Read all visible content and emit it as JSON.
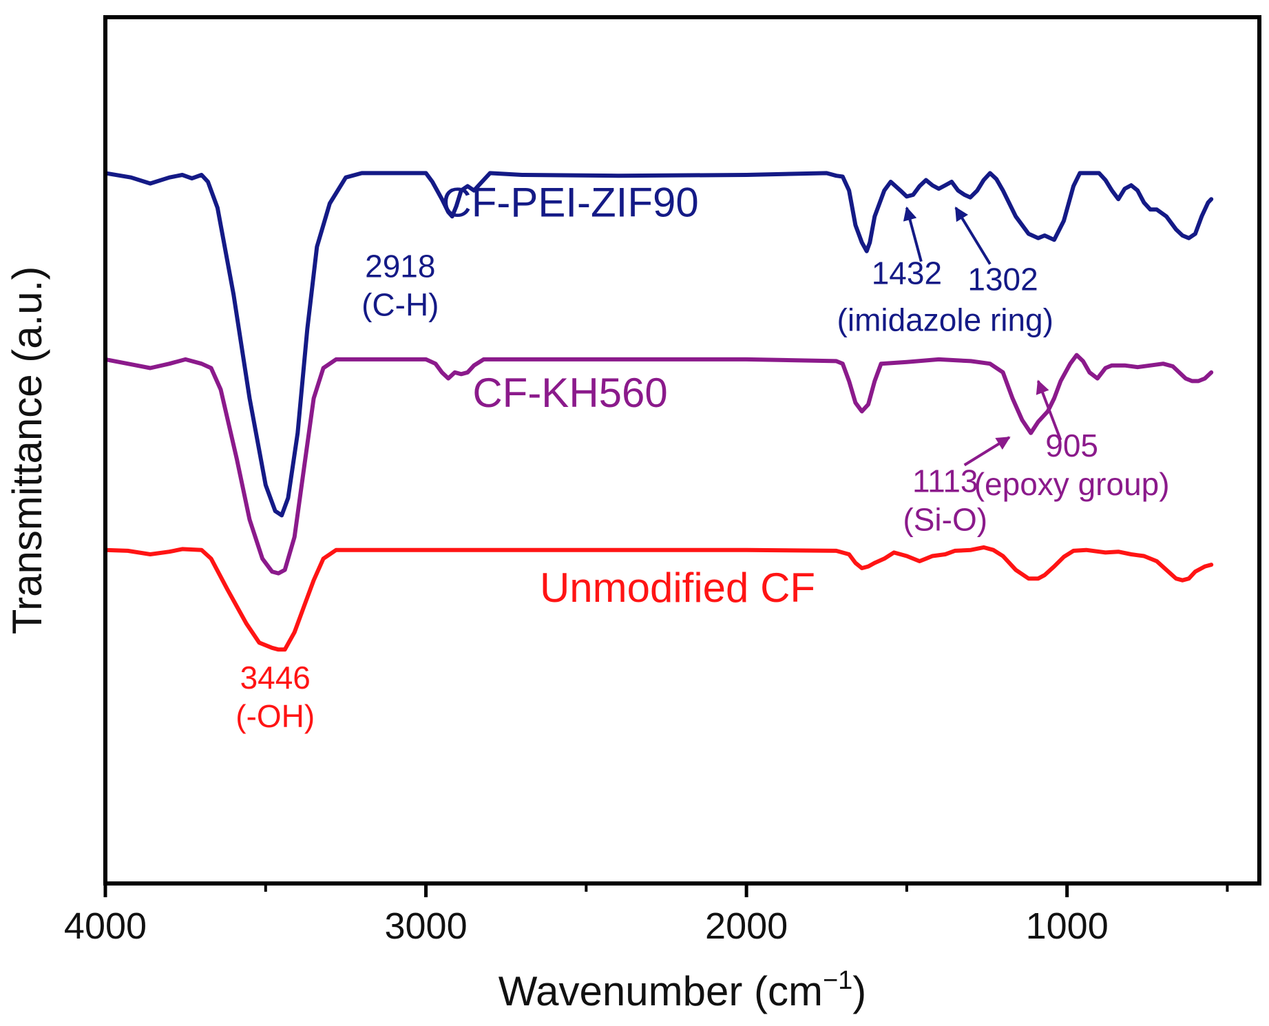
{
  "chart_data": {
    "type": "line",
    "xlabel": "Wavenumber (cm",
    "xlabel_sup": "−1",
    "xlabel_close": ")",
    "ylabel": "Transmittance (a.u.)",
    "xlim": [
      4000,
      400
    ],
    "x_ticks": [
      4000,
      3000,
      2000,
      1000
    ],
    "x_tick_labels": [
      "4000",
      "3000",
      "2000",
      "1000"
    ],
    "ylim": [
      0,
      1
    ],
    "grid": false,
    "series": [
      {
        "name": "CF-PEI-ZIF90",
        "color": "#141a86",
        "baseline": 0.82,
        "points": [
          [
            4000,
            0.82
          ],
          [
            3920,
            0.815
          ],
          [
            3860,
            0.808
          ],
          [
            3800,
            0.815
          ],
          [
            3760,
            0.818
          ],
          [
            3730,
            0.814
          ],
          [
            3700,
            0.818
          ],
          [
            3680,
            0.81
          ],
          [
            3650,
            0.78
          ],
          [
            3600,
            0.68
          ],
          [
            3550,
            0.56
          ],
          [
            3500,
            0.46
          ],
          [
            3470,
            0.43
          ],
          [
            3450,
            0.425
          ],
          [
            3430,
            0.445
          ],
          [
            3400,
            0.52
          ],
          [
            3370,
            0.64
          ],
          [
            3340,
            0.735
          ],
          [
            3300,
            0.785
          ],
          [
            3250,
            0.815
          ],
          [
            3200,
            0.82
          ],
          [
            3000,
            0.82
          ],
          [
            2980,
            0.81
          ],
          [
            2950,
            0.79
          ],
          [
            2930,
            0.775
          ],
          [
            2918,
            0.77
          ],
          [
            2905,
            0.782
          ],
          [
            2890,
            0.8
          ],
          [
            2870,
            0.805
          ],
          [
            2850,
            0.8
          ],
          [
            2830,
            0.808
          ],
          [
            2800,
            0.82
          ],
          [
            2700,
            0.818
          ],
          [
            2400,
            0.817
          ],
          [
            2000,
            0.818
          ],
          [
            1750,
            0.82
          ],
          [
            1720,
            0.817
          ],
          [
            1700,
            0.816
          ],
          [
            1680,
            0.8
          ],
          [
            1660,
            0.76
          ],
          [
            1640,
            0.74
          ],
          [
            1625,
            0.73
          ],
          [
            1615,
            0.74
          ],
          [
            1600,
            0.77
          ],
          [
            1570,
            0.8
          ],
          [
            1550,
            0.81
          ],
          [
            1520,
            0.8
          ],
          [
            1500,
            0.793
          ],
          [
            1480,
            0.795
          ],
          [
            1460,
            0.805
          ],
          [
            1440,
            0.812
          ],
          [
            1420,
            0.806
          ],
          [
            1400,
            0.802
          ],
          [
            1380,
            0.806
          ],
          [
            1360,
            0.81
          ],
          [
            1340,
            0.8
          ],
          [
            1320,
            0.795
          ],
          [
            1302,
            0.792
          ],
          [
            1280,
            0.8
          ],
          [
            1260,
            0.812
          ],
          [
            1240,
            0.82
          ],
          [
            1220,
            0.813
          ],
          [
            1200,
            0.8
          ],
          [
            1160,
            0.77
          ],
          [
            1120,
            0.75
          ],
          [
            1090,
            0.745
          ],
          [
            1070,
            0.748
          ],
          [
            1040,
            0.743
          ],
          [
            1010,
            0.765
          ],
          [
            980,
            0.805
          ],
          [
            960,
            0.82
          ],
          [
            900,
            0.82
          ],
          [
            880,
            0.812
          ],
          [
            860,
            0.8
          ],
          [
            840,
            0.79
          ],
          [
            820,
            0.802
          ],
          [
            800,
            0.806
          ],
          [
            780,
            0.8
          ],
          [
            760,
            0.786
          ],
          [
            740,
            0.778
          ],
          [
            720,
            0.778
          ],
          [
            690,
            0.77
          ],
          [
            660,
            0.755
          ],
          [
            640,
            0.748
          ],
          [
            620,
            0.745
          ],
          [
            600,
            0.75
          ],
          [
            580,
            0.77
          ],
          [
            560,
            0.786
          ],
          [
            550,
            0.79
          ]
        ]
      },
      {
        "name": "CF-KH560",
        "color": "#8b1a8b",
        "baseline": 0.605,
        "points": [
          [
            4000,
            0.605
          ],
          [
            3930,
            0.6
          ],
          [
            3860,
            0.595
          ],
          [
            3800,
            0.6
          ],
          [
            3750,
            0.605
          ],
          [
            3700,
            0.6
          ],
          [
            3670,
            0.595
          ],
          [
            3640,
            0.57
          ],
          [
            3590,
            0.49
          ],
          [
            3550,
            0.42
          ],
          [
            3510,
            0.375
          ],
          [
            3480,
            0.36
          ],
          [
            3460,
            0.358
          ],
          [
            3440,
            0.362
          ],
          [
            3410,
            0.4
          ],
          [
            3380,
            0.48
          ],
          [
            3350,
            0.56
          ],
          [
            3320,
            0.595
          ],
          [
            3280,
            0.605
          ],
          [
            3000,
            0.605
          ],
          [
            2970,
            0.6
          ],
          [
            2950,
            0.59
          ],
          [
            2930,
            0.583
          ],
          [
            2910,
            0.59
          ],
          [
            2890,
            0.588
          ],
          [
            2870,
            0.59
          ],
          [
            2850,
            0.598
          ],
          [
            2820,
            0.605
          ],
          [
            2000,
            0.605
          ],
          [
            1720,
            0.603
          ],
          [
            1700,
            0.6
          ],
          [
            1680,
            0.58
          ],
          [
            1660,
            0.555
          ],
          [
            1640,
            0.545
          ],
          [
            1620,
            0.553
          ],
          [
            1600,
            0.58
          ],
          [
            1580,
            0.6
          ],
          [
            1500,
            0.602
          ],
          [
            1400,
            0.605
          ],
          [
            1300,
            0.603
          ],
          [
            1240,
            0.6
          ],
          [
            1200,
            0.59
          ],
          [
            1170,
            0.56
          ],
          [
            1140,
            0.535
          ],
          [
            1113,
            0.52
          ],
          [
            1090,
            0.533
          ],
          [
            1060,
            0.545
          ],
          [
            1040,
            0.56
          ],
          [
            1020,
            0.58
          ],
          [
            990,
            0.6
          ],
          [
            970,
            0.61
          ],
          [
            950,
            0.603
          ],
          [
            930,
            0.59
          ],
          [
            905,
            0.583
          ],
          [
            880,
            0.595
          ],
          [
            860,
            0.598
          ],
          [
            820,
            0.598
          ],
          [
            780,
            0.596
          ],
          [
            740,
            0.598
          ],
          [
            700,
            0.6
          ],
          [
            670,
            0.597
          ],
          [
            650,
            0.59
          ],
          [
            630,
            0.583
          ],
          [
            610,
            0.58
          ],
          [
            590,
            0.58
          ],
          [
            570,
            0.583
          ],
          [
            550,
            0.59
          ]
        ]
      },
      {
        "name": "Unmodified CF",
        "color": "#ff1414",
        "baseline": 0.385,
        "points": [
          [
            4000,
            0.385
          ],
          [
            3930,
            0.384
          ],
          [
            3860,
            0.38
          ],
          [
            3800,
            0.383
          ],
          [
            3760,
            0.386
          ],
          [
            3700,
            0.385
          ],
          [
            3670,
            0.375
          ],
          [
            3620,
            0.34
          ],
          [
            3560,
            0.3
          ],
          [
            3520,
            0.278
          ],
          [
            3480,
            0.272
          ],
          [
            3460,
            0.27
          ],
          [
            3440,
            0.27
          ],
          [
            3410,
            0.29
          ],
          [
            3380,
            0.32
          ],
          [
            3350,
            0.35
          ],
          [
            3320,
            0.375
          ],
          [
            3280,
            0.385
          ],
          [
            3000,
            0.385
          ],
          [
            2000,
            0.385
          ],
          [
            1720,
            0.384
          ],
          [
            1680,
            0.38
          ],
          [
            1660,
            0.37
          ],
          [
            1640,
            0.364
          ],
          [
            1620,
            0.366
          ],
          [
            1600,
            0.37
          ],
          [
            1570,
            0.375
          ],
          [
            1540,
            0.382
          ],
          [
            1500,
            0.378
          ],
          [
            1460,
            0.372
          ],
          [
            1440,
            0.375
          ],
          [
            1420,
            0.378
          ],
          [
            1380,
            0.38
          ],
          [
            1350,
            0.384
          ],
          [
            1300,
            0.385
          ],
          [
            1260,
            0.388
          ],
          [
            1230,
            0.385
          ],
          [
            1200,
            0.378
          ],
          [
            1160,
            0.362
          ],
          [
            1120,
            0.352
          ],
          [
            1090,
            0.352
          ],
          [
            1070,
            0.356
          ],
          [
            1040,
            0.366
          ],
          [
            1010,
            0.377
          ],
          [
            980,
            0.384
          ],
          [
            940,
            0.385
          ],
          [
            880,
            0.382
          ],
          [
            840,
            0.383
          ],
          [
            800,
            0.38
          ],
          [
            760,
            0.378
          ],
          [
            720,
            0.372
          ],
          [
            690,
            0.362
          ],
          [
            660,
            0.352
          ],
          [
            640,
            0.35
          ],
          [
            620,
            0.352
          ],
          [
            600,
            0.36
          ],
          [
            570,
            0.366
          ],
          [
            550,
            0.368
          ]
        ]
      }
    ],
    "series_labels": [
      {
        "text": "CF-PEI-ZIF90",
        "series": 0,
        "x": 2550,
        "y": 0.77
      },
      {
        "text": "CF-KH560",
        "series": 1,
        "x": 2550,
        "y": 0.55
      },
      {
        "text": "Unmodified CF",
        "series": 2,
        "x": 2215,
        "y": 0.325
      }
    ],
    "annotations": [
      {
        "series": 0,
        "lines": [
          "2918",
          "(C-H)"
        ],
        "x": 3080,
        "y": 0.7
      },
      {
        "series": 0,
        "lines": [
          "1432"
        ],
        "x": 1500,
        "y": 0.692,
        "arrow": {
          "from": [
            1455,
            0.718
          ],
          "to": [
            1500,
            0.78
          ]
        }
      },
      {
        "series": 0,
        "lines": [
          "1302"
        ],
        "x": 1200,
        "y": 0.685,
        "arrow": {
          "from": [
            1240,
            0.715
          ],
          "to": [
            1347,
            0.78
          ]
        }
      },
      {
        "series": 0,
        "lines": [
          "(imidazole ring)"
        ],
        "x": 1380,
        "y": 0.638
      },
      {
        "series": 1,
        "lines": [
          "1113",
          "(Si-O)"
        ],
        "x": 1380,
        "y": 0.452,
        "arrow": {
          "from": [
            1320,
            0.483
          ],
          "to": [
            1180,
            0.515
          ]
        }
      },
      {
        "series": 1,
        "lines": [
          "905",
          "(epoxy group)"
        ],
        "x": 985,
        "y": 0.493,
        "arrow": {
          "from": [
            1020,
            0.512
          ],
          "to": [
            1090,
            0.58
          ]
        }
      },
      {
        "series": 2,
        "lines": [
          "3446",
          "(-OH)"
        ],
        "x": 3470,
        "y": 0.225
      }
    ]
  }
}
